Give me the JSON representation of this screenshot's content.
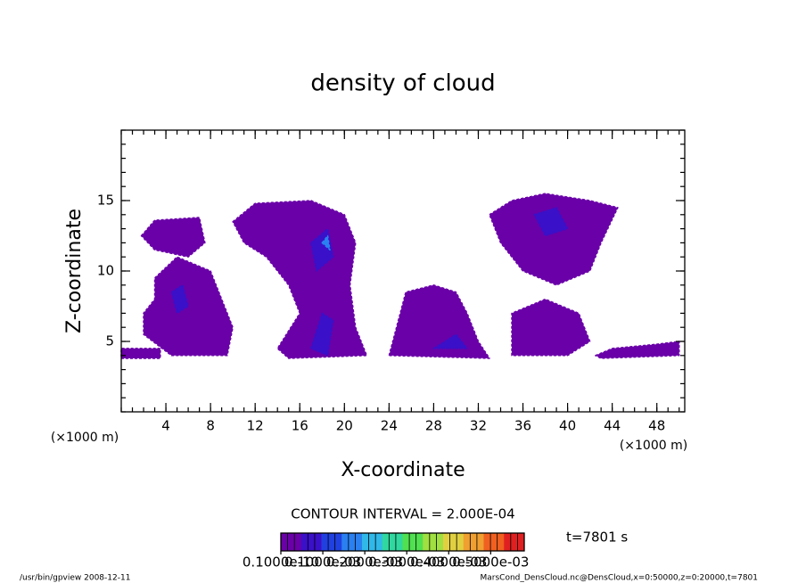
{
  "chart_data": {
    "type": "contour",
    "title": "density of cloud",
    "x_label": "X-coordinate",
    "y_label": "Z-coordinate",
    "x_unit": "(×1000 m)",
    "y_unit": "(×1000 m)",
    "xlim": [
      0,
      50.5
    ],
    "ylim": [
      0,
      20
    ],
    "xticks": [
      4,
      8,
      12,
      16,
      20,
      24,
      28,
      32,
      36,
      40,
      44,
      48
    ],
    "yticks": [
      5,
      10,
      15
    ],
    "contour_interval_text": "CONTOUR INTERVAL = 2.000E-04",
    "time_text": "t=7801 s",
    "footer_left": "/usr/bin/gpview  2008-12-11",
    "footer_right": "MarsCond_DensCloud.nc@DensCloud,x=0:50000,z=0:20000,t=7801",
    "colorbar": {
      "clim": [
        0,
        0.00058
      ],
      "colors": [
        "#6a00a8",
        "#3a10c8",
        "#2040e0",
        "#2a80f0",
        "#30b8e8",
        "#30d8a0",
        "#50e050",
        "#a0e040",
        "#e0d040",
        "#f0a030",
        "#f06020",
        "#e02020"
      ],
      "ticks": [
        {
          "value": 1e-11,
          "label": "0.1000e-10"
        },
        {
          "value": 0.0001,
          "label": "0.1000e-03"
        },
        {
          "value": 0.0002,
          "label": "0.2000e-03"
        },
        {
          "value": 0.0003,
          "label": "0.3000e-03"
        },
        {
          "value": 0.0004,
          "label": "0.4000e-03"
        },
        {
          "value": 0.0005,
          "label": "0.5000e-03"
        }
      ]
    },
    "regions": [
      {
        "value": 2e-05,
        "x": [
          0,
          3.5,
          3.5,
          0
        ],
        "z": [
          3.8,
          3.8,
          4.5,
          4.5
        ]
      },
      {
        "value": 2e-05,
        "x": [
          1.8,
          3,
          7,
          7.5,
          6,
          3
        ],
        "z": [
          12.5,
          13.6,
          13.8,
          12,
          11,
          11.5
        ]
      },
      {
        "value": 2e-05,
        "x": [
          3,
          5,
          8,
          9,
          10,
          9.5,
          4.5,
          2,
          2,
          3
        ],
        "z": [
          9.5,
          11,
          10,
          8,
          6,
          4,
          4,
          5.5,
          7,
          8
        ]
      },
      {
        "value": 2e-05,
        "x": [
          10,
          12,
          17,
          20,
          21,
          20.5,
          21,
          22,
          15,
          14,
          16,
          15,
          13,
          11
        ],
        "z": [
          13.5,
          14.8,
          15,
          14,
          12,
          9,
          6,
          4,
          3.8,
          4.5,
          7,
          9,
          11,
          12
        ]
      },
      {
        "value": 2e-05,
        "x": [
          24,
          25,
          25.5,
          28,
          30,
          31,
          32,
          33
        ],
        "z": [
          4,
          7,
          8.5,
          9,
          8.5,
          7,
          5,
          3.8
        ]
      },
      {
        "value": 2e-05,
        "x": [
          33,
          35,
          38,
          42,
          44.5,
          43,
          42,
          39,
          36,
          34
        ],
        "z": [
          14,
          15,
          15.5,
          15,
          14.5,
          12,
          10,
          9,
          10,
          12
        ]
      },
      {
        "value": 2e-05,
        "x": [
          35,
          35,
          38,
          41,
          42,
          40
        ],
        "z": [
          4,
          7,
          8,
          7,
          5,
          4
        ]
      },
      {
        "value": 2e-05,
        "x": [
          42.5,
          44,
          48,
          50,
          50,
          43
        ],
        "z": [
          4,
          4.5,
          4.8,
          5,
          4,
          3.8
        ]
      },
      {
        "value": 9e-05,
        "x": [
          4.5,
          5.5,
          6,
          5
        ],
        "z": [
          8.5,
          9,
          7.5,
          7
        ]
      },
      {
        "value": 9e-05,
        "x": [
          17,
          18.5,
          19,
          17.5
        ],
        "z": [
          12,
          13,
          11,
          10
        ]
      },
      {
        "value": 9e-05,
        "x": [
          18,
          19,
          18.5,
          17
        ],
        "z": [
          7,
          6.5,
          4,
          4.5
        ]
      },
      {
        "value": 9e-05,
        "x": [
          28,
          30,
          31
        ],
        "z": [
          4.5,
          5.5,
          4.5
        ]
      },
      {
        "value": 9e-05,
        "x": [
          37,
          39,
          40,
          38
        ],
        "z": [
          14,
          14.5,
          13,
          12.5
        ]
      },
      {
        "value": 0.00017,
        "x": [
          18,
          18.5,
          18.7
        ],
        "z": [
          12,
          12.5,
          11.5
        ]
      }
    ]
  }
}
